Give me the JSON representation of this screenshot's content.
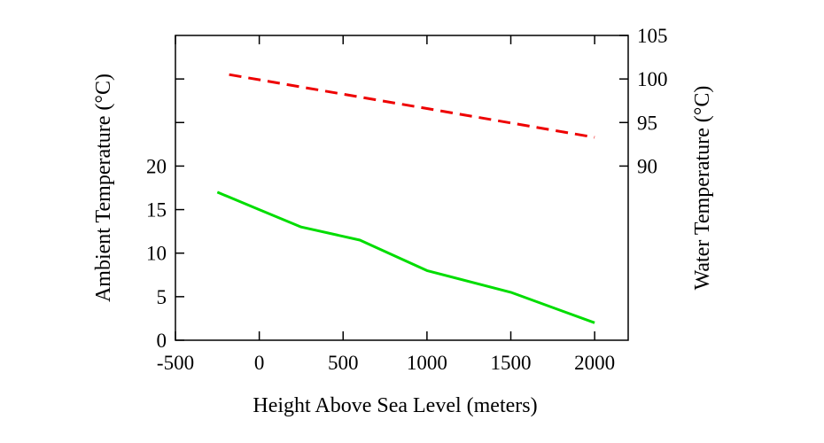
{
  "chart_data": {
    "type": "line",
    "xlabel": "Height Above Sea Level (meters)",
    "ylabel": "Ambient Temperature (°C)",
    "y2label": "Water Temperature (°C)",
    "xlim": [
      -500,
      2200
    ],
    "ylim": [
      0,
      35
    ],
    "y2lim": [
      70,
      105
    ],
    "x_ticks": [
      -500,
      0,
      500,
      1000,
      1500,
      2000
    ],
    "y_ticks": [
      0,
      5,
      10,
      15,
      20
    ],
    "y_minor_ticks": [
      25,
      30
    ],
    "y2_ticks": [
      90,
      95,
      100,
      105
    ],
    "grid": false,
    "series": [
      {
        "axis": "left",
        "color": "#00dd00",
        "dash": "solid",
        "x": [
          -250,
          0,
          250,
          600,
          1000,
          1500,
          2000
        ],
        "y": [
          17,
          15,
          13,
          11.5,
          8,
          5.5,
          2
        ]
      },
      {
        "axis": "right",
        "color": "#ee0000",
        "dash": "dashed",
        "x": [
          -180,
          2000
        ],
        "y": [
          100.5,
          93.3
        ]
      }
    ]
  }
}
